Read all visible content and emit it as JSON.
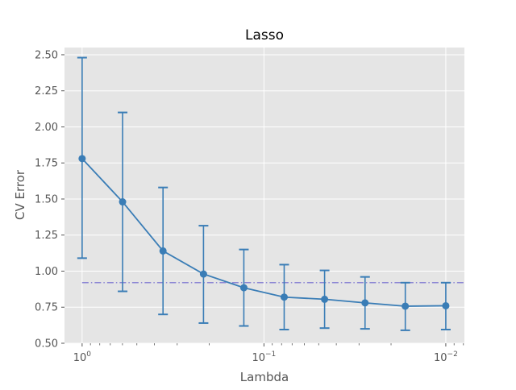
{
  "chart_data": {
    "type": "scatter",
    "title": "Lasso",
    "xlabel": "Lambda",
    "ylabel": "CV Error",
    "x_scale": "log",
    "x_reversed": true,
    "xlim": [
      1.25,
      0.0079
    ],
    "ylim": [
      0.5,
      2.55
    ],
    "grid": true,
    "background": "#e5e5e5",
    "grid_color": "#ffffff",
    "line_color": "#3a7db6",
    "threshold_color": "#8c86d4",
    "x_ticks": [
      {
        "value": 1,
        "label": "10",
        "exp": "0"
      },
      {
        "value": 0.1,
        "label": "10",
        "exp": "−1"
      },
      {
        "value": 0.01,
        "label": "10",
        "exp": "−2"
      }
    ],
    "y_ticks": [
      {
        "value": 0.5,
        "label": "0.50"
      },
      {
        "value": 0.75,
        "label": "0.75"
      },
      {
        "value": 1.0,
        "label": "1.00"
      },
      {
        "value": 1.25,
        "label": "1.25"
      },
      {
        "value": 1.5,
        "label": "1.50"
      },
      {
        "value": 1.75,
        "label": "1.75"
      },
      {
        "value": 2.0,
        "label": "2.00"
      },
      {
        "value": 2.25,
        "label": "2.25"
      },
      {
        "value": 2.5,
        "label": "2.50"
      }
    ],
    "series": [
      {
        "x": [
          1.0,
          0.599,
          0.359,
          0.215,
          0.129,
          0.0774,
          0.0464,
          0.0278,
          0.0167,
          0.01
        ],
        "y": [
          1.78,
          1.48,
          1.14,
          0.98,
          0.885,
          0.82,
          0.805,
          0.78,
          0.757,
          0.76
        ],
        "y_lower": [
          1.09,
          0.86,
          0.7,
          0.64,
          0.62,
          0.595,
          0.605,
          0.6,
          0.59,
          0.595
        ],
        "y_upper": [
          2.48,
          2.1,
          1.58,
          1.315,
          1.15,
          1.045,
          1.005,
          0.96,
          0.92,
          0.92
        ]
      }
    ],
    "threshold": {
      "y": 0.92,
      "x_from": 1.0,
      "x_to": 0.0079
    }
  }
}
